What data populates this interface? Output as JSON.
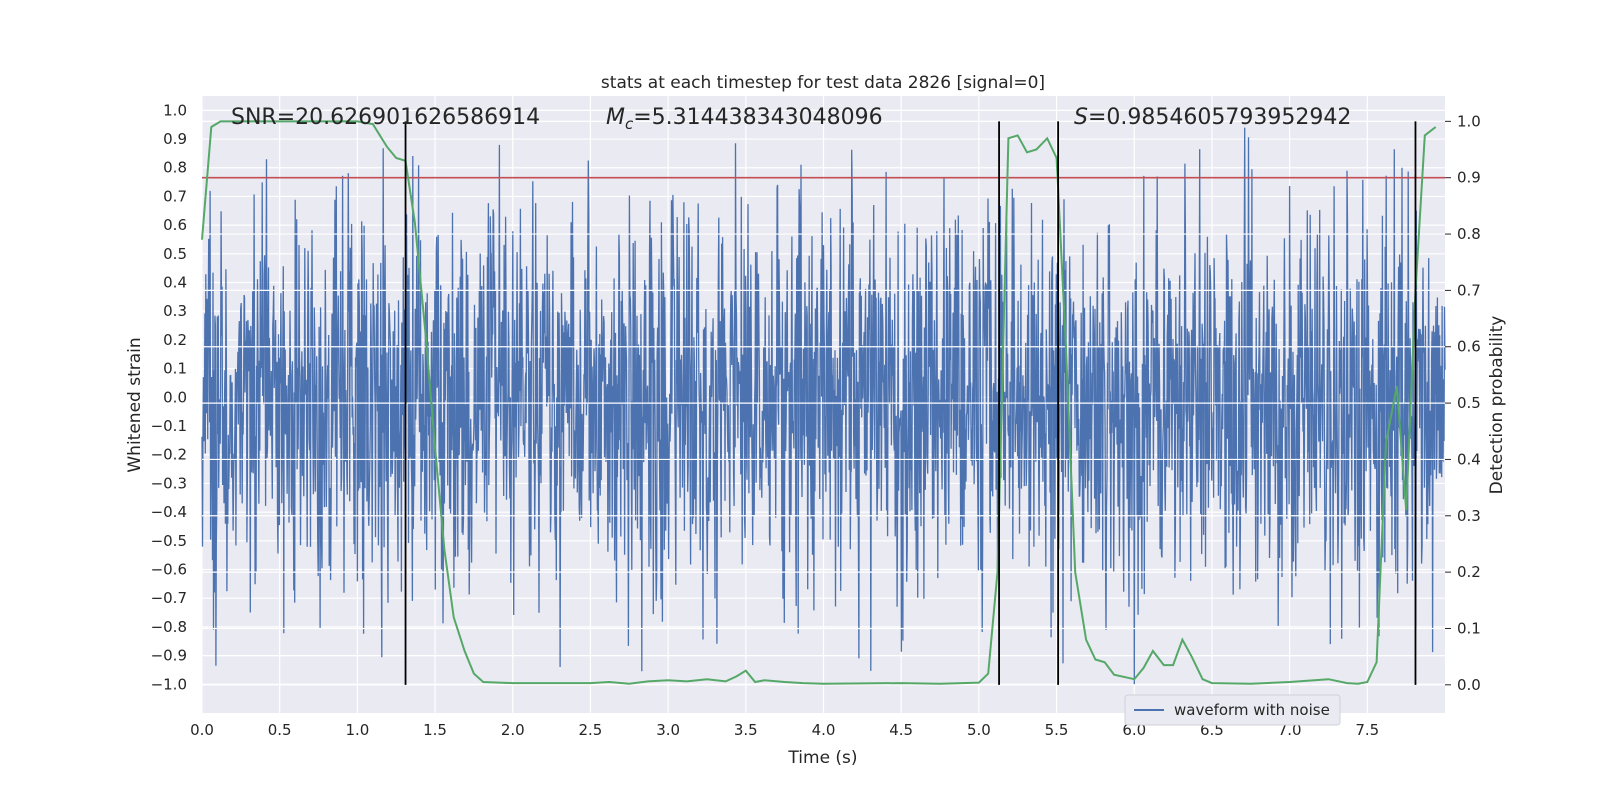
{
  "chart_data": {
    "type": "line",
    "title": "stats at each timestep for test data 2826 [signal=0]",
    "xlabel": "Time (s)",
    "ylabel_left": "Whitened strain",
    "ylabel_right": "Detection probability",
    "xlim": [
      0.0,
      8.0
    ],
    "ylim_left": [
      -1.1,
      1.05
    ],
    "ylim_right": [
      -0.05,
      1.045
    ],
    "x_ticks": [
      "0.0",
      "0.5",
      "1.0",
      "1.5",
      "2.0",
      "2.5",
      "3.0",
      "3.5",
      "4.0",
      "4.5",
      "5.0",
      "5.5",
      "6.0",
      "6.5",
      "7.0",
      "7.5"
    ],
    "y_ticks_left": [
      "1.0",
      "0.9",
      "0.8",
      "0.7",
      "0.6",
      "0.5",
      "0.4",
      "0.3",
      "0.2",
      "0.1",
      "0.0",
      "−0.1",
      "−0.2",
      "−0.3",
      "−0.4",
      "−0.5",
      "−0.6",
      "−0.7",
      "−0.8",
      "−0.9",
      "−1.0"
    ],
    "y_ticks_right": [
      "1.0",
      "0.9",
      "0.8",
      "0.7",
      "0.6",
      "0.5",
      "0.4",
      "0.3",
      "0.2",
      "0.1",
      "0.0"
    ],
    "grid": true,
    "legend": {
      "placement": "lower-right",
      "entries": [
        "waveform with noise"
      ]
    },
    "annotations": {
      "snr": "SNR=20.626901626586914",
      "mc_symbol": "M",
      "mc_sub": "c",
      "mc_value": "=5.314438343048096",
      "s_symbol": "S",
      "s_value": "=0.9854605793952942"
    },
    "threshold": {
      "value": 0.9,
      "axis": "right",
      "color": "#c44e52"
    },
    "event_lines": [
      1.31,
      5.13,
      5.51,
      7.81
    ],
    "series": [
      {
        "name": "waveform with noise",
        "axis": "left",
        "color": "#4c72b0",
        "style": "noise",
        "typical_amplitude": 0.42,
        "min": -1.0,
        "max": 0.94
      },
      {
        "axis": "right",
        "color": "#55a868",
        "x": [
          0.0,
          0.06,
          0.12,
          0.25,
          0.5,
          0.75,
          1.0,
          1.1,
          1.19,
          1.25,
          1.31,
          1.37,
          1.44,
          1.5,
          1.56,
          1.62,
          1.69,
          1.75,
          1.81,
          2.0,
          2.5,
          2.62,
          2.75,
          2.87,
          3.0,
          3.12,
          3.25,
          3.37,
          3.44,
          3.5,
          3.56,
          3.62,
          3.75,
          3.87,
          4.0,
          4.5,
          4.75,
          5.0,
          5.06,
          5.12,
          5.19,
          5.25,
          5.31,
          5.37,
          5.44,
          5.5,
          5.56,
          5.62,
          5.69,
          5.75,
          5.81,
          5.87,
          6.0,
          6.06,
          6.12,
          6.19,
          6.25,
          6.31,
          6.37,
          6.44,
          6.5,
          6.75,
          7.0,
          7.25,
          7.37,
          7.44,
          7.5,
          7.56,
          7.62,
          7.69,
          7.75,
          7.81,
          7.87,
          7.94
        ],
        "y": [
          0.79,
          0.99,
          1.0,
          1.0,
          1.0,
          1.0,
          1.0,
          0.995,
          0.955,
          0.935,
          0.93,
          0.82,
          0.62,
          0.42,
          0.24,
          0.12,
          0.06,
          0.02,
          0.005,
          0.003,
          0.003,
          0.005,
          0.002,
          0.006,
          0.008,
          0.006,
          0.01,
          0.006,
          0.015,
          0.025,
          0.005,
          0.008,
          0.005,
          0.003,
          0.002,
          0.003,
          0.002,
          0.004,
          0.02,
          0.2,
          0.97,
          0.975,
          0.945,
          0.95,
          0.97,
          0.935,
          0.6,
          0.2,
          0.08,
          0.045,
          0.04,
          0.018,
          0.01,
          0.03,
          0.06,
          0.035,
          0.035,
          0.08,
          0.05,
          0.01,
          0.003,
          0.002,
          0.005,
          0.01,
          0.003,
          0.002,
          0.005,
          0.04,
          0.43,
          0.53,
          0.31,
          0.7,
          0.975,
          0.99
        ]
      }
    ]
  }
}
